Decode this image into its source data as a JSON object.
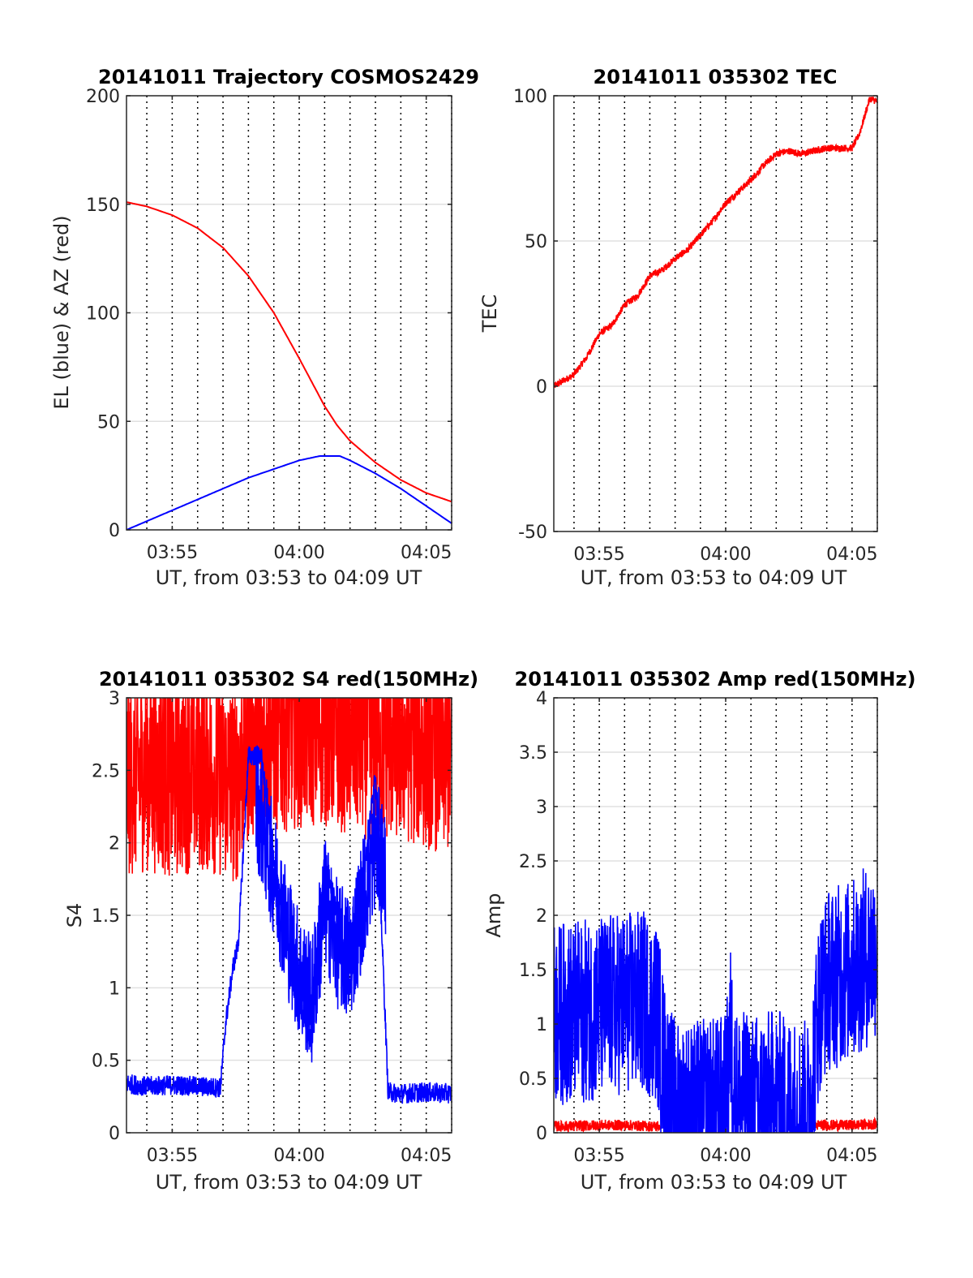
{
  "figure_background": "#ffffff",
  "chart_data": [
    {
      "type": "line",
      "title": "20141011 Trajectory COSMOS2429",
      "xlabel": "UT, from 03:53 to 04:09 UT",
      "ylabel": "EL (blue) & AZ (red)",
      "xlim": [
        3.2,
        16.0
      ],
      "ylim": [
        0,
        200
      ],
      "xticks": [
        5,
        10,
        15
      ],
      "xtick_labels": [
        "03:55",
        "04:00",
        "04:05"
      ],
      "yticks": [
        0,
        50,
        100,
        150,
        200
      ],
      "ytick_labels": [
        "0",
        "50",
        "100",
        "150",
        "200"
      ],
      "grid": true,
      "vlines_dotted": [
        4,
        5,
        6,
        7,
        8,
        9,
        10,
        11,
        12,
        13,
        14,
        15,
        16
      ],
      "series": [
        {
          "color": "#ff0000",
          "noise": 0,
          "x": [
            3.2,
            4,
            5,
            6,
            7,
            8,
            9,
            10,
            10.5,
            11,
            11.5,
            12,
            13,
            14,
            15,
            16
          ],
          "y": [
            151,
            149,
            145,
            139,
            130,
            117,
            100,
            79,
            68,
            57,
            48,
            41,
            31,
            23,
            17,
            13
          ]
        },
        {
          "color": "#0000ff",
          "noise": 0,
          "x": [
            3.2,
            4,
            5,
            6,
            7,
            8,
            9,
            10,
            10.8,
            11.6,
            12,
            13,
            14,
            15,
            16
          ],
          "y": [
            0,
            4,
            9,
            14,
            19,
            24,
            28,
            32,
            34,
            34,
            32,
            26,
            19,
            11,
            3
          ]
        }
      ]
    },
    {
      "type": "line",
      "title": "20141011 035302 TEC",
      "xlabel": "UT, from 03:53 to 04:09 UT",
      "ylabel": "TEC",
      "xlim": [
        3.2,
        16.0
      ],
      "ylim": [
        -50,
        100
      ],
      "xticks": [
        5,
        10,
        15
      ],
      "xtick_labels": [
        "03:55",
        "04:00",
        "04:05"
      ],
      "yticks": [
        -50,
        0,
        50,
        100
      ],
      "ytick_labels": [
        "-50",
        "0",
        "50",
        "100"
      ],
      "grid": true,
      "vlines_dotted": [
        4,
        5,
        6,
        7,
        8,
        9,
        10,
        11,
        12,
        13,
        14,
        15,
        16
      ],
      "series": [
        {
          "color": "#ff0000",
          "noise": 1.2,
          "x": [
            3.2,
            4,
            4.5,
            5,
            5.5,
            6,
            6.5,
            7,
            7.5,
            8,
            8.5,
            9,
            9.5,
            10,
            10.5,
            11,
            11.5,
            12,
            12.5,
            13,
            13.5,
            14,
            14.5,
            15,
            15.3,
            15.7,
            16
          ],
          "y": [
            0,
            4,
            10,
            18,
            21,
            28,
            31,
            38,
            40,
            44,
            47,
            52,
            57,
            63,
            67,
            71,
            76,
            80,
            81,
            80,
            81,
            82,
            82,
            82,
            87,
            99,
            98
          ]
        }
      ]
    },
    {
      "type": "line",
      "title": "20141011 035302 S4 red(150MHz)",
      "xlabel": "UT, from 03:53 to 04:09 UT",
      "ylabel": "S4",
      "xlim": [
        3.2,
        16.0
      ],
      "ylim": [
        0,
        3
      ],
      "xticks": [
        5,
        10,
        15
      ],
      "xtick_labels": [
        "03:55",
        "04:00",
        "04:05"
      ],
      "yticks": [
        0,
        0.5,
        1,
        1.5,
        2,
        2.5,
        3
      ],
      "ytick_labels": [
        "0",
        "0.5",
        "1",
        "1.5",
        "2",
        "2.5",
        "3"
      ],
      "grid": true,
      "vlines_dotted": [
        4,
        5,
        6,
        7,
        8,
        9,
        10,
        11,
        12,
        13,
        14,
        15,
        16
      ],
      "series": [
        {
          "color": "#ff0000",
          "noise": 0.7,
          "x": [
            3.2,
            4,
            5,
            6,
            7,
            7.5,
            8,
            8.5,
            9,
            10,
            11,
            12,
            13,
            14,
            15,
            16
          ],
          "y": [
            2.45,
            2.5,
            2.45,
            2.5,
            2.45,
            2.4,
            2.7,
            2.75,
            2.75,
            2.8,
            2.8,
            2.75,
            2.7,
            2.7,
            2.65,
            2.6
          ]
        },
        {
          "color": "#0000ff",
          "noise": 0.07,
          "x": [
            3.2,
            4,
            5,
            6,
            6.9,
            7.1,
            7.4,
            7.6,
            8,
            8.5,
            9,
            9.5,
            10,
            10.5,
            11,
            11.5,
            12,
            12.5,
            13,
            13.5,
            14,
            15,
            16
          ],
          "y": [
            0.34,
            0.32,
            0.33,
            0.32,
            0.31,
            0.75,
            1.15,
            1.3,
            2.6,
            2.6,
            1.9,
            1.3,
            0.9,
            0.6,
            1.9,
            1.5,
            1.0,
            1.7,
            2.5,
            0.28,
            0.27,
            0.28,
            0.27
          ]
        },
        {
          "color": "#0000ff",
          "noise": 0.45,
          "x": [
            8.3,
            9,
            9.5,
            10,
            10.5,
            11,
            11.5,
            12,
            12.5,
            13,
            13.4
          ],
          "y": [
            2.3,
            1.8,
            1.4,
            1.1,
            0.9,
            1.6,
            1.3,
            1.2,
            1.6,
            2.0,
            1.8
          ]
        }
      ]
    },
    {
      "type": "line",
      "title": "20141011 035302 Amp red(150MHz)",
      "xlabel": "UT, from 03:53 to 04:09 UT",
      "ylabel": "Amp",
      "xlim": [
        3.2,
        16.0
      ],
      "ylim": [
        0,
        4
      ],
      "xticks": [
        5,
        10,
        15
      ],
      "xtick_labels": [
        "03:55",
        "04:00",
        "04:05"
      ],
      "yticks": [
        0,
        0.5,
        1,
        1.5,
        2,
        2.5,
        3,
        3.5,
        4
      ],
      "ytick_labels": [
        "0",
        "0.5",
        "1",
        "1.5",
        "2",
        "2.5",
        "3",
        "3.5",
        "4"
      ],
      "grid": true,
      "vlines_dotted": [
        4,
        5,
        6,
        7,
        8,
        9,
        10,
        11,
        12,
        13,
        14,
        15,
        16
      ],
      "series": [
        {
          "color": "#ff0000",
          "noise": 0.05,
          "x": [
            3.2,
            4,
            5,
            6,
            7,
            7.4
          ],
          "y": [
            0.06,
            0.06,
            0.07,
            0.07,
            0.06,
            0.06
          ]
        },
        {
          "color": "#ff0000",
          "noise": 0.05,
          "x": [
            13.4,
            14,
            15,
            16
          ],
          "y": [
            0.07,
            0.07,
            0.07,
            0.08
          ]
        },
        {
          "color": "#0000ff",
          "noise": 0.85,
          "x": [
            3.2,
            4,
            5,
            6,
            6.8,
            7.3,
            7.6,
            8,
            9,
            10,
            10.2,
            10.4,
            11,
            12,
            13,
            13.3,
            13.7,
            14,
            15,
            16
          ],
          "y": [
            1.1,
            1.1,
            1.15,
            1.2,
            1.2,
            1.1,
            0.5,
            0.2,
            0.2,
            0.25,
            0.9,
            0.3,
            0.25,
            0.3,
            0.2,
            0.2,
            1.2,
            1.4,
            1.5,
            1.7
          ]
        }
      ]
    }
  ]
}
